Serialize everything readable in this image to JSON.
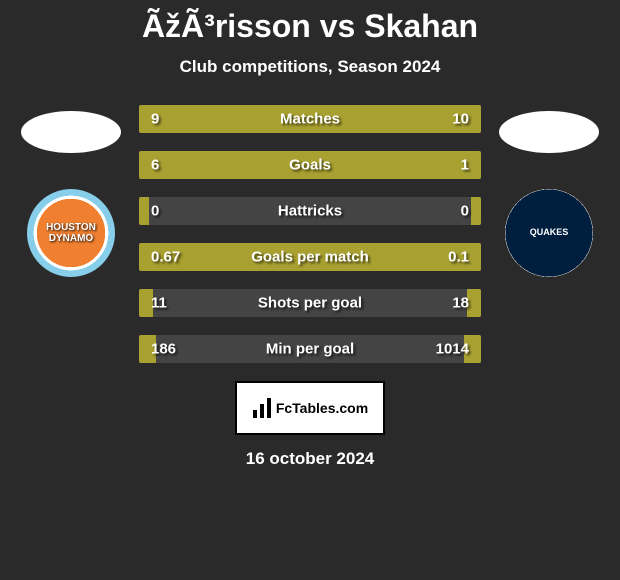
{
  "title": "ÃžÃ³risson vs Skahan",
  "subtitle": "Club competitions, Season 2024",
  "date": "16 october 2024",
  "footer_brand": "FcTables.com",
  "colors": {
    "background": "#2a2a2a",
    "bar_fill": "#a8a030",
    "bar_empty": "#444444",
    "text": "#ffffff"
  },
  "left_team": {
    "name": "Houston Dynamo",
    "short": "HOUSTON\nDYNAMO",
    "primary": "#f08030",
    "secondary": "#87ceeb"
  },
  "right_team": {
    "name": "San Jose Earthquakes",
    "short": "QUAKES",
    "primary": "#001f3f",
    "secondary": "#ffffff"
  },
  "stats": [
    {
      "label": "Matches",
      "left_val": "9",
      "right_val": "10",
      "left_pct": 47,
      "right_pct": 53
    },
    {
      "label": "Goals",
      "left_val": "6",
      "right_val": "1",
      "left_pct": 79,
      "right_pct": 21
    },
    {
      "label": "Hattricks",
      "left_val": "0",
      "right_val": "0",
      "left_pct": 3,
      "right_pct": 3
    },
    {
      "label": "Goals per match",
      "left_val": "0.67",
      "right_val": "0.1",
      "left_pct": 80,
      "right_pct": 20
    },
    {
      "label": "Shots per goal",
      "left_val": "11",
      "right_val": "18",
      "left_pct": 4,
      "right_pct": 4
    },
    {
      "label": "Min per goal",
      "left_val": "186",
      "right_val": "1014",
      "left_pct": 5,
      "right_pct": 5
    }
  ]
}
